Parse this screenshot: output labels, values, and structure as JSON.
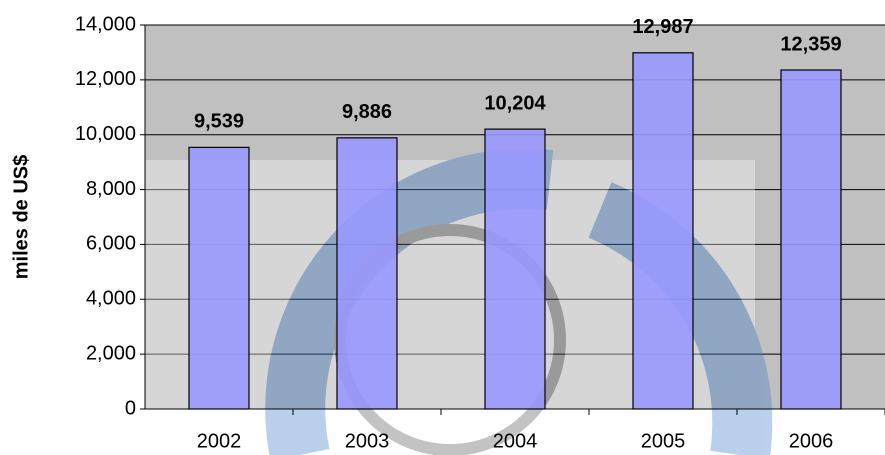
{
  "chart_data": {
    "type": "bar",
    "y_label": "miles de US$",
    "categories": [
      "2002",
      "2003",
      "2004",
      "2005",
      "2006"
    ],
    "values": [
      9539,
      9886,
      10204,
      12987,
      12359
    ],
    "value_labels": [
      "9,539",
      "9,886",
      "10,204",
      "12,987",
      "12,359"
    ],
    "color": "#9999ff",
    "ylim": [
      0,
      14000
    ],
    "yticks": [
      0,
      {
        "value": 2000,
        "label": "2,000"
      },
      {
        "value": 4000,
        "label": "4,000"
      },
      {
        "value": 6000,
        "label": "6,000"
      },
      {
        "value": 8000,
        "label": "8,000"
      },
      {
        "value": 10000,
        "label": "10,000"
      },
      {
        "value": 12000,
        "label": "12,000"
      },
      {
        "value": 14000,
        "label": "14,000"
      }
    ],
    "grid": true
  }
}
